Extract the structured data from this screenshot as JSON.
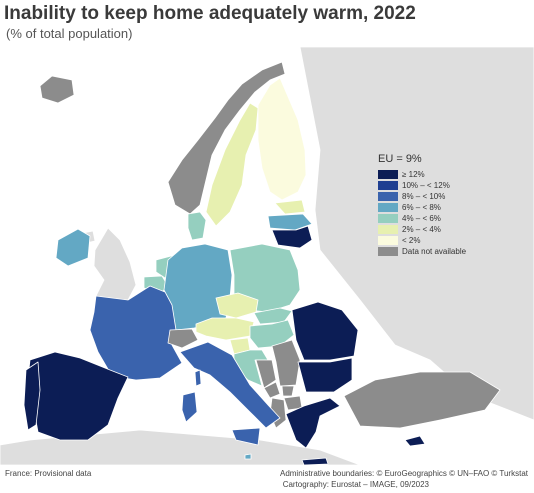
{
  "header": {
    "title": "Inability to keep home adequately warm, 2022",
    "subtitle": "(% of total population)"
  },
  "legend": {
    "title": "EU = 9%",
    "classes": [
      {
        "label": "≥ 12%",
        "color": "#0c1d55"
      },
      {
        "label": "10% – < 12%",
        "color": "#1f3f91"
      },
      {
        "label": "8% – < 10%",
        "color": "#3a63ad"
      },
      {
        "label": "6% – < 8%",
        "color": "#63a8c4"
      },
      {
        "label": "4% – < 6%",
        "color": "#95cfbf"
      },
      {
        "label": "2% – < 4%",
        "color": "#e7f0b0"
      },
      {
        "label": "< 2%",
        "color": "#fbfbde"
      },
      {
        "label": "Data not available",
        "color": "#8c8c8c"
      }
    ]
  },
  "map": {
    "sea_color": "#ffffff",
    "non_eu_land_color": "#dedede",
    "border_color": "#ffffff",
    "countries": [
      {
        "id": "ES",
        "name": "Spain",
        "class": "≥ 12%"
      },
      {
        "id": "PT",
        "name": "Portugal",
        "class": "≥ 12%"
      },
      {
        "id": "FR",
        "name": "France",
        "class": "8% – < 10%"
      },
      {
        "id": "IT",
        "name": "Italy",
        "class": "8% – < 10%"
      },
      {
        "id": "DE",
        "name": "Germany",
        "class": "6% – < 8%"
      },
      {
        "id": "PL",
        "name": "Poland",
        "class": "4% – < 6%"
      },
      {
        "id": "RO",
        "name": "Romania",
        "class": "≥ 12%"
      },
      {
        "id": "BG",
        "name": "Bulgaria",
        "class": "≥ 12%"
      },
      {
        "id": "GR",
        "name": "Greece",
        "class": "≥ 12%"
      },
      {
        "id": "CY",
        "name": "Cyprus",
        "class": "≥ 12%"
      },
      {
        "id": "LT",
        "name": "Lithuania",
        "class": "≥ 12%"
      },
      {
        "id": "LV",
        "name": "Latvia",
        "class": "6% – < 8%"
      },
      {
        "id": "EE",
        "name": "Estonia",
        "class": "2% – < 4%"
      },
      {
        "id": "FI",
        "name": "Finland",
        "class": "< 2%"
      },
      {
        "id": "SE",
        "name": "Sweden",
        "class": "2% – < 4%"
      },
      {
        "id": "DK",
        "name": "Denmark",
        "class": "4% – < 6%"
      },
      {
        "id": "IE",
        "name": "Ireland",
        "class": "6% – < 8%"
      },
      {
        "id": "NL",
        "name": "Netherlands",
        "class": "4% – < 6%"
      },
      {
        "id": "BE",
        "name": "Belgium",
        "class": "4% – < 6%"
      },
      {
        "id": "LU",
        "name": "Luxembourg",
        "class": "2% – < 4%"
      },
      {
        "id": "AT",
        "name": "Austria",
        "class": "2% – < 4%"
      },
      {
        "id": "CZ",
        "name": "Czechia",
        "class": "2% – < 4%"
      },
      {
        "id": "SK",
        "name": "Slovakia",
        "class": "4% – < 6%"
      },
      {
        "id": "HU",
        "name": "Hungary",
        "class": "4% – < 6%"
      },
      {
        "id": "SI",
        "name": "Slovenia",
        "class": "2% – < 4%"
      },
      {
        "id": "HR",
        "name": "Croatia",
        "class": "4% – < 6%"
      },
      {
        "id": "MT",
        "name": "Malta",
        "class": "6% – < 8%"
      },
      {
        "id": "NO",
        "name": "Norway",
        "class": "Data not available"
      },
      {
        "id": "IS",
        "name": "Iceland",
        "class": "Data not available"
      },
      {
        "id": "CH",
        "name": "Switzerland",
        "class": "Data not available"
      },
      {
        "id": "TR",
        "name": "Türkiye",
        "class": "Data not available"
      },
      {
        "id": "RS",
        "name": "Serbia",
        "class": "Data not available"
      },
      {
        "id": "BA",
        "name": "Bosnia and Herzegovina",
        "class": "Data not available"
      },
      {
        "id": "ME",
        "name": "Montenegro",
        "class": "Data not available"
      },
      {
        "id": "AL",
        "name": "Albania",
        "class": "Data not available"
      },
      {
        "id": "MK",
        "name": "North Macedonia",
        "class": "Data not available"
      },
      {
        "id": "XK",
        "name": "Kosovo",
        "class": "Data not available"
      }
    ]
  },
  "footer": {
    "note": "France: Provisional data",
    "credit_boundaries": "Administrative boundaries: © EuroGeographics © UN–FAO © Turkstat",
    "credit_cartography": "Cartography: Eurostat – IMAGE, 09/2023"
  }
}
